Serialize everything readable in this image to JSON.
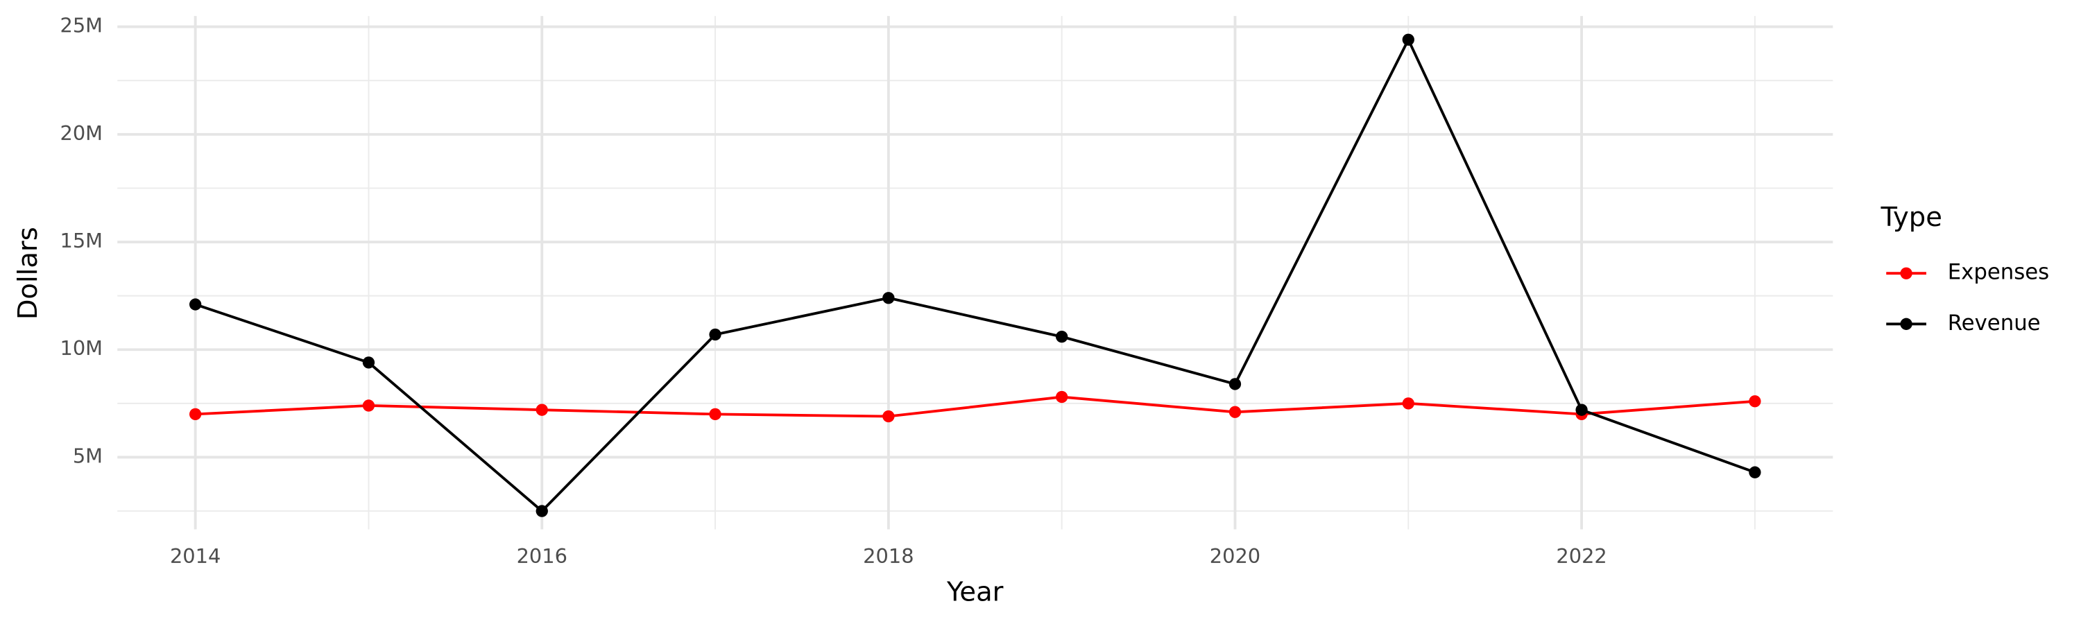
{
  "chart_data": {
    "type": "line",
    "x_label": "Year",
    "y_label": "Dollars",
    "legend_title": "Type",
    "x": [
      2014,
      2015,
      2016,
      2017,
      2018,
      2019,
      2020,
      2021,
      2022,
      2023
    ],
    "series": [
      {
        "name": "Expenses",
        "color": "#ff0000",
        "values": [
          7000000,
          7400000,
          7200000,
          7000000,
          6900000,
          7800000,
          7100000,
          7500000,
          7000000,
          7600000
        ]
      },
      {
        "name": "Revenue",
        "color": "#000000",
        "values": [
          12100000,
          9400000,
          2500000,
          10700000,
          12400000,
          10600000,
          8400000,
          24400000,
          7200000,
          4300000
        ]
      }
    ],
    "xlim": [
      2013.55,
      2023.45
    ],
    "xticks": [
      2014,
      2016,
      2018,
      2020,
      2022
    ],
    "ylim": [
      1650000,
      25500000
    ],
    "yticks": [
      {
        "value": 5000000,
        "label": "5M"
      },
      {
        "value": 10000000,
        "label": "10M"
      },
      {
        "value": 15000000,
        "label": "15M"
      },
      {
        "value": 20000000,
        "label": "20M"
      },
      {
        "value": 25000000,
        "label": "25M"
      }
    ],
    "grid": true,
    "legend_position": "right"
  }
}
